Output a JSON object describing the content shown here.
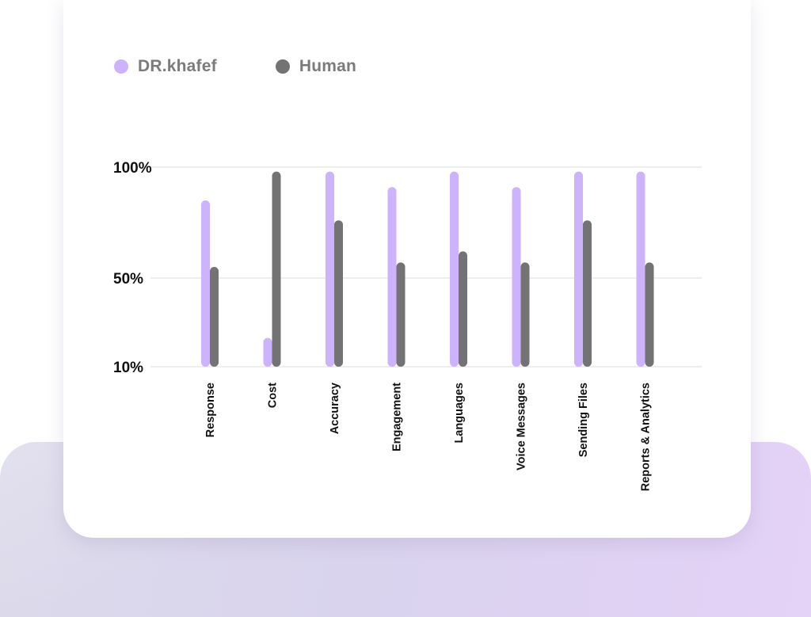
{
  "colors": {
    "series_1": "#cdb3fb",
    "series_2": "#737373",
    "grid": "#e3e3e3",
    "tick_text": "#111111"
  },
  "legend": {
    "items": [
      {
        "label": "DR.khafef",
        "color": "#cdb3fb",
        "icon": "legend-dot-icon"
      },
      {
        "label": "Human",
        "color": "#737373",
        "icon": "legend-dot-icon"
      }
    ]
  },
  "chart_data": {
    "type": "bar",
    "title": "",
    "xlabel": "",
    "ylabel": "",
    "categories": [
      "Response",
      "Cost",
      "Accuracy",
      "Engagement",
      "Languages",
      "Voice Messages",
      "Sending Files",
      "Reports & Analytics"
    ],
    "series": [
      {
        "name": "DR.khafef",
        "values": [
          85,
          23,
          98,
          91,
          98,
          91,
          98,
          98
        ]
      },
      {
        "name": "Human",
        "values": [
          55,
          98,
          76,
          57,
          62,
          57,
          76,
          57
        ]
      }
    ],
    "ylim": [
      10,
      100
    ],
    "yticks": [
      {
        "value": 100,
        "label": "100%"
      },
      {
        "value": 50,
        "label": "50%"
      },
      {
        "value": 10,
        "label": "10%"
      }
    ],
    "grid": true,
    "legend_position": "top-left"
  }
}
